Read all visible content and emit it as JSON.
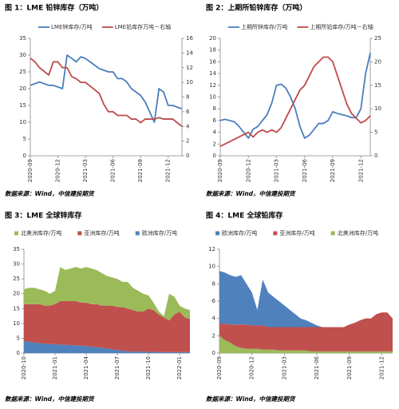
{
  "chart_data": [
    {
      "type": "line",
      "title": "图 1：LME 铅锌库存（万吨）",
      "source": "数据来源：Wind，中信建投期货",
      "categories": [
        "2020-09",
        null,
        null,
        null,
        null,
        null,
        "2020-12",
        null,
        null,
        null,
        null,
        null,
        "2021-03",
        null,
        null,
        null,
        null,
        null,
        "2021-06",
        null,
        null,
        null,
        null,
        null,
        "2021-09",
        null,
        null,
        null,
        null,
        null,
        "2021-12",
        null,
        null,
        null
      ],
      "ylim": [
        0,
        35
      ],
      "yticks": [
        0,
        5,
        10,
        15,
        20,
        25,
        30,
        35
      ],
      "y2lim": [
        0,
        16
      ],
      "y2ticks": [
        0,
        2,
        4,
        6,
        8,
        10,
        12,
        14,
        16
      ],
      "series": [
        {
          "name": "LME锌库存/万吨",
          "color": "#4a7ebb",
          "values": [
            21,
            21.5,
            22,
            21.5,
            21,
            21,
            20.5,
            20,
            30,
            29,
            28,
            29.5,
            29,
            28,
            27,
            26,
            25.5,
            25,
            25,
            23,
            23,
            22,
            20,
            19,
            18,
            16,
            13,
            10,
            20,
            19,
            15,
            15,
            14.5,
            14
          ]
        },
        {
          "name": "LME铅库存万吨－右轴",
          "color": "#be4b48",
          "axis": "y2",
          "values": [
            13.3,
            12.8,
            12,
            11.5,
            11,
            12.8,
            12.8,
            12,
            12,
            10.8,
            10.5,
            10,
            10,
            9.5,
            9,
            8.5,
            7,
            6,
            6,
            5.5,
            5.5,
            5.5,
            5,
            5,
            4.5,
            5,
            5,
            5,
            5.2,
            5,
            5,
            5,
            4.5,
            4
          ]
        }
      ]
    },
    {
      "type": "line",
      "title": "图 2：上期所铅锌库存（万吨）",
      "source": "数据来源：Wind，中信建投期货",
      "categories": [
        "2020-09",
        null,
        null,
        null,
        null,
        null,
        "2020-12",
        null,
        null,
        null,
        null,
        null,
        "2021-03",
        null,
        null,
        null,
        null,
        null,
        "2021-06",
        null,
        null,
        null,
        null,
        null,
        "2021-09",
        null,
        null,
        null,
        null,
        null,
        "2021-12",
        null,
        null
      ],
      "ylim": [
        0,
        20
      ],
      "yticks": [
        0,
        2,
        4,
        6,
        8,
        10,
        12,
        14,
        16,
        18,
        20
      ],
      "y2lim": [
        0,
        25
      ],
      "y2ticks": [
        0,
        5,
        10,
        15,
        20,
        25
      ],
      "series": [
        {
          "name": "上期所锌库存/万吨",
          "color": "#4a7ebb",
          "values": [
            6,
            6.2,
            6,
            5.8,
            5,
            4,
            3,
            4.5,
            5,
            6,
            7,
            9,
            12,
            12.2,
            11.5,
            10,
            8,
            5,
            3,
            3.5,
            4.5,
            5.5,
            5.5,
            6,
            7.5,
            7.2,
            7,
            6.8,
            6.5,
            6.5,
            8,
            14,
            17.5
          ]
        },
        {
          "name": "上期所铅库存/万吨－右轴",
          "color": "#be4b48",
          "axis": "y2",
          "values": [
            2,
            2.5,
            3,
            3.5,
            4,
            4.5,
            5,
            4,
            5,
            5.5,
            5,
            5.5,
            5,
            6,
            8,
            10,
            12,
            14,
            15,
            17,
            19,
            20,
            21,
            21,
            20,
            17,
            14,
            11,
            9,
            8,
            7,
            7.5,
            8.5
          ]
        }
      ]
    },
    {
      "type": "area",
      "title": "图 3：LME 全球锌库存",
      "source": "数据来源：Wind，中信建投期货",
      "categories": [
        "2020-10",
        null,
        null,
        null,
        null,
        null,
        "2021-01",
        null,
        null,
        null,
        null,
        null,
        "2021-04",
        null,
        null,
        null,
        null,
        null,
        "2021-07",
        null,
        null,
        null,
        null,
        null,
        "2021-10",
        null,
        null,
        null,
        null,
        null,
        "2022-01",
        null,
        null
      ],
      "ylim": [
        0,
        35
      ],
      "yticks": [
        0,
        5,
        10,
        15,
        20,
        25,
        30,
        35
      ],
      "series": [
        {
          "name": "北美洲库存/万吨",
          "color": "#9bbb59",
          "values": [
            5,
            5.5,
            5.5,
            5,
            5,
            4,
            4.5,
            11.5,
            10.5,
            11,
            11.5,
            11.5,
            12,
            12,
            11.5,
            11,
            10,
            9.5,
            9.5,
            8.5,
            9,
            7.5,
            7,
            6,
            4.5,
            2.5,
            1,
            0.5,
            9,
            6,
            2,
            3,
            3
          ]
        },
        {
          "name": "亚洲库存/万吨",
          "color": "#c0504d",
          "values": [
            12.5,
            12.7,
            13,
            13.2,
            12.8,
            13,
            13.5,
            14.7,
            14.7,
            14.8,
            14.9,
            14.5,
            14.6,
            14.3,
            14.5,
            14.2,
            14.5,
            14.7,
            14.5,
            14.7,
            14.4,
            14,
            13.5,
            13.5,
            14.6,
            14.1,
            12.7,
            11.7,
            10.7,
            12.7,
            13.7,
            11.7,
            11.2
          ]
        },
        {
          "name": "欧洲库存/万吨",
          "color": "#4f81bd",
          "values": [
            4,
            3.8,
            3.5,
            3.3,
            3.2,
            3,
            3,
            2.8,
            2.8,
            2.7,
            2.6,
            2.5,
            2.4,
            2.2,
            2,
            1.8,
            1.5,
            1.3,
            1,
            0.8,
            0.6,
            0.5,
            0.5,
            0.5,
            0.4,
            0.4,
            0.3,
            0.3,
            0.3,
            0.3,
            0.3,
            0.3,
            0.3
          ]
        }
      ]
    },
    {
      "type": "area",
      "title": "图 4：LME 全球铅库存",
      "source": "数据来源：Wind，中信建投期货",
      "categories": [
        "2020-09",
        null,
        null,
        null,
        null,
        null,
        "2020-12",
        null,
        null,
        null,
        null,
        null,
        "2021-03",
        null,
        null,
        null,
        null,
        null,
        "2021-06",
        null,
        null,
        null,
        null,
        null,
        "2021-09",
        null,
        null,
        null,
        null,
        null,
        "2021-12",
        null,
        null
      ],
      "ylim": [
        0,
        12
      ],
      "yticks": [
        0,
        2,
        4,
        6,
        8,
        10,
        12
      ],
      "series": [
        {
          "name": "欧洲库存/万吨",
          "color": "#4f81bd",
          "values": [
            6.1,
            5.9,
            5.7,
            5.5,
            5.7,
            4.7,
            3.8,
            1.8,
            5.3,
            4,
            3.5,
            3,
            2.5,
            2,
            1.5,
            1,
            0.8,
            0.5,
            0.2,
            0,
            0,
            0,
            0,
            0,
            0,
            0,
            0,
            0,
            0,
            0,
            0,
            0,
            0
          ]
        },
        {
          "name": "亚洲库存/万吨",
          "color": "#c0504d",
          "values": [
            1.4,
            1.9,
            2.1,
            2.5,
            2.7,
            2.8,
            2.7,
            2.7,
            2.8,
            2.6,
            2.6,
            2.7,
            2.7,
            2.7,
            2.7,
            2.7,
            2.7,
            2.8,
            2.8,
            2.8,
            2.8,
            2.8,
            2.8,
            2.8,
            3.1,
            3.3,
            3.6,
            3.8,
            3.8,
            4.3,
            4.5,
            4.5,
            3.8
          ]
        },
        {
          "name": "北美洲库存/万吨",
          "color": "#9bbb59",
          "values": [
            2,
            1.5,
            1.2,
            0.8,
            0.6,
            0.5,
            0.5,
            0.5,
            0.4,
            0.4,
            0.4,
            0.3,
            0.3,
            0.3,
            0.3,
            0.3,
            0.3,
            0.2,
            0.2,
            0.2,
            0.2,
            0.2,
            0.2,
            0.2,
            0.2,
            0.2,
            0.2,
            0.2,
            0.2,
            0.2,
            0.2,
            0.2,
            0.2
          ]
        }
      ]
    }
  ]
}
